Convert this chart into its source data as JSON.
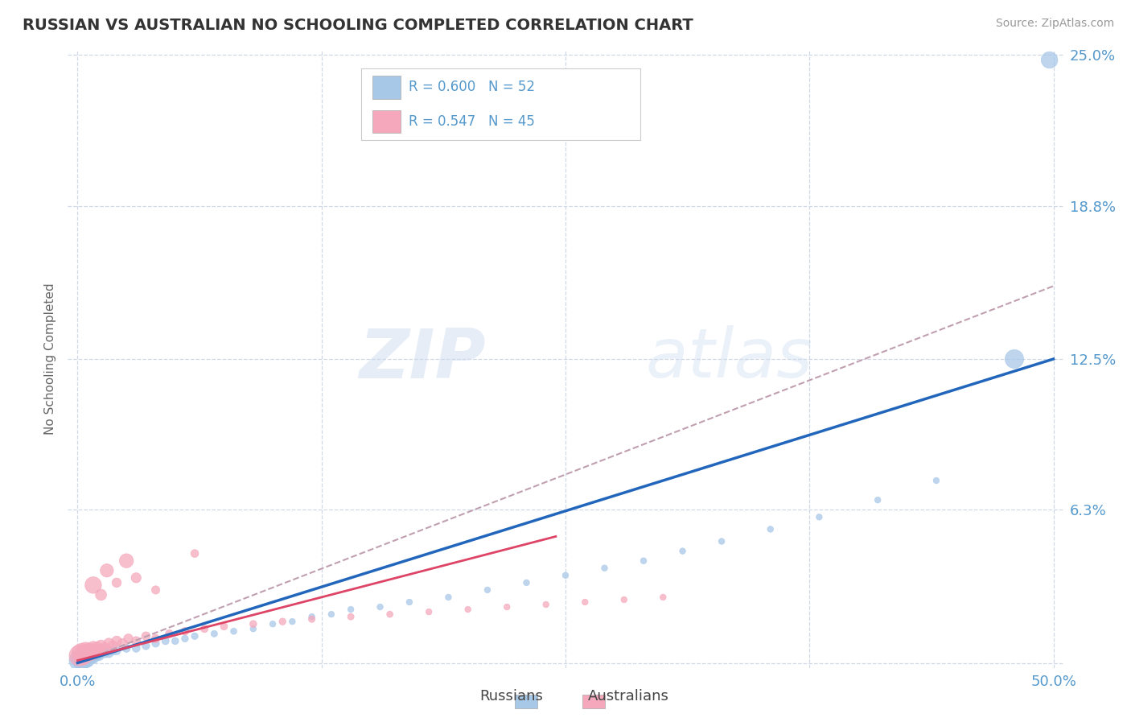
{
  "title": "RUSSIAN VS AUSTRALIAN NO SCHOOLING COMPLETED CORRELATION CHART",
  "source": "Source: ZipAtlas.com",
  "ylabel": "No Schooling Completed",
  "watermark": "ZIPatlas",
  "xlim": [
    -0.005,
    0.505
  ],
  "ylim": [
    -0.002,
    0.252
  ],
  "yticks": [
    0.0,
    0.063,
    0.125,
    0.188,
    0.25
  ],
  "ytick_labels": [
    "",
    "6.3%",
    "12.5%",
    "18.8%",
    "25.0%"
  ],
  "xticks": [
    0.0,
    0.125,
    0.25,
    0.375,
    0.5
  ],
  "xtick_labels": [
    "0.0%",
    "",
    "",
    "",
    "50.0%"
  ],
  "russian_color": "#a8c8e8",
  "australian_color": "#f5a8bc",
  "russian_line_color": "#2266bb",
  "australian_solid_line_color": "#dd4466",
  "australian_dashed_line_color": "#c0a0b0",
  "grid_color": "#d0d8e8",
  "tick_label_color": "#5599cc",
  "title_color": "#333333",
  "source_color": "#999999",
  "legend_label_color": "#5599cc",
  "bottom_legend_color": "#444444",
  "rus_line_x": [
    0.0,
    0.5
  ],
  "rus_line_y": [
    0.0,
    0.125
  ],
  "aus_solid_line_x": [
    0.0,
    0.245
  ],
  "aus_solid_line_y": [
    0.001,
    0.052
  ],
  "aus_dashed_line_x": [
    0.0,
    0.5
  ],
  "aus_dashed_line_y": [
    0.0,
    0.155
  ],
  "russians_x": [
    0.001,
    0.002,
    0.002,
    0.003,
    0.003,
    0.004,
    0.004,
    0.005,
    0.005,
    0.006,
    0.007,
    0.008,
    0.009,
    0.01,
    0.011,
    0.012,
    0.014,
    0.016,
    0.018,
    0.02,
    0.025,
    0.03,
    0.035,
    0.04,
    0.045,
    0.05,
    0.055,
    0.06,
    0.07,
    0.08,
    0.09,
    0.1,
    0.11,
    0.12,
    0.13,
    0.14,
    0.155,
    0.17,
    0.19,
    0.21,
    0.23,
    0.25,
    0.27,
    0.29,
    0.31,
    0.33,
    0.355,
    0.38,
    0.41,
    0.44,
    0.48,
    0.498
  ],
  "russians_y": [
    0.001,
    0.001,
    0.002,
    0.001,
    0.002,
    0.001,
    0.002,
    0.001,
    0.003,
    0.002,
    0.002,
    0.002,
    0.003,
    0.003,
    0.003,
    0.004,
    0.004,
    0.004,
    0.005,
    0.005,
    0.006,
    0.006,
    0.007,
    0.008,
    0.009,
    0.009,
    0.01,
    0.011,
    0.012,
    0.013,
    0.014,
    0.016,
    0.017,
    0.019,
    0.02,
    0.022,
    0.023,
    0.025,
    0.027,
    0.03,
    0.033,
    0.036,
    0.039,
    0.042,
    0.046,
    0.05,
    0.055,
    0.06,
    0.067,
    0.075,
    0.125,
    0.248
  ],
  "russians_size": [
    350,
    280,
    260,
    220,
    200,
    180,
    160,
    150,
    130,
    120,
    110,
    100,
    90,
    85,
    80,
    75,
    70,
    65,
    60,
    55,
    52,
    50,
    47,
    45,
    43,
    40,
    38,
    36,
    34,
    32,
    30,
    30,
    30,
    30,
    30,
    30,
    30,
    30,
    30,
    30,
    30,
    30,
    30,
    30,
    30,
    30,
    30,
    30,
    30,
    30,
    280,
    220
  ],
  "australians_x": [
    0.001,
    0.002,
    0.003,
    0.004,
    0.005,
    0.006,
    0.007,
    0.008,
    0.009,
    0.01,
    0.011,
    0.012,
    0.014,
    0.016,
    0.018,
    0.02,
    0.023,
    0.026,
    0.03,
    0.035,
    0.04,
    0.047,
    0.055,
    0.065,
    0.075,
    0.09,
    0.105,
    0.12,
    0.14,
    0.16,
    0.18,
    0.2,
    0.22,
    0.24,
    0.26,
    0.28,
    0.3,
    0.025,
    0.008,
    0.015,
    0.03,
    0.06,
    0.012,
    0.02,
    0.04
  ],
  "australians_y": [
    0.003,
    0.004,
    0.003,
    0.005,
    0.004,
    0.005,
    0.004,
    0.006,
    0.005,
    0.006,
    0.005,
    0.007,
    0.006,
    0.008,
    0.007,
    0.009,
    0.008,
    0.01,
    0.009,
    0.011,
    0.01,
    0.012,
    0.013,
    0.014,
    0.015,
    0.016,
    0.017,
    0.018,
    0.019,
    0.02,
    0.021,
    0.022,
    0.023,
    0.024,
    0.025,
    0.026,
    0.027,
    0.042,
    0.032,
    0.038,
    0.035,
    0.045,
    0.028,
    0.033,
    0.03
  ],
  "australians_size": [
    350,
    300,
    260,
    230,
    210,
    190,
    170,
    155,
    145,
    130,
    120,
    110,
    100,
    90,
    85,
    80,
    75,
    70,
    65,
    60,
    55,
    50,
    47,
    44,
    42,
    40,
    38,
    36,
    34,
    32,
    30,
    30,
    30,
    30,
    30,
    30,
    30,
    160,
    220,
    140,
    80,
    50,
    100,
    70,
    55
  ]
}
